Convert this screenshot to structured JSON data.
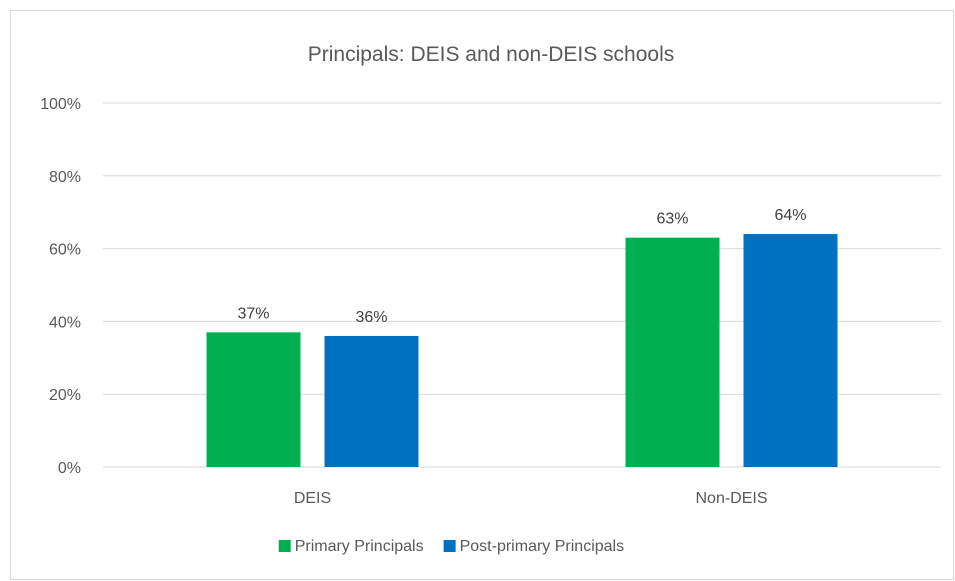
{
  "chart_data": {
    "type": "bar",
    "title": "Principals: DEIS and non-DEIS schools",
    "categories": [
      "DEIS",
      "Non-DEIS"
    ],
    "series": [
      {
        "name": "Primary Principals",
        "color": "#00b050",
        "values": [
          37,
          63
        ],
        "labels": [
          "37%",
          "63%"
        ]
      },
      {
        "name": "Post-primary Principals",
        "color": "#0070c0",
        "values": [
          36,
          64
        ],
        "labels": [
          "36%",
          "64%"
        ]
      }
    ],
    "ylim": [
      0,
      100
    ],
    "yticks": [
      {
        "value": 0,
        "label": "0%"
      },
      {
        "value": 20,
        "label": "20%"
      },
      {
        "value": 40,
        "label": "40%"
      },
      {
        "value": 60,
        "label": "60%"
      },
      {
        "value": 80,
        "label": "80%"
      },
      {
        "value": 100,
        "label": "100%"
      }
    ],
    "grid": true,
    "legend_position": "bottom"
  }
}
